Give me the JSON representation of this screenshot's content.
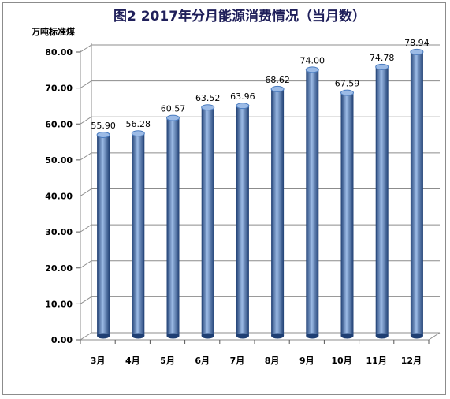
{
  "chart_data": {
    "type": "bar",
    "title": "图2 2017年分月能源消费情况（当月数）",
    "ylabel": "万吨标准煤",
    "xlabel": "",
    "categories": [
      "3月",
      "4月",
      "5月",
      "6月",
      "7月",
      "8月",
      "9月",
      "10月",
      "11月",
      "12月"
    ],
    "values": [
      55.9,
      56.28,
      60.57,
      63.52,
      63.96,
      68.62,
      74.0,
      67.59,
      74.78,
      78.94
    ],
    "data_labels": [
      "55.90",
      "56.28",
      "60.57",
      "63.52",
      "63.96",
      "68.62",
      "74.00",
      "67.59",
      "74.78",
      "78.94"
    ],
    "ylim": [
      0,
      80
    ],
    "yticks": [
      0,
      10,
      20,
      30,
      40,
      50,
      60,
      70,
      80
    ],
    "ytick_labels": [
      "0.00",
      "10.00",
      "20.00",
      "30.00",
      "40.00",
      "50.00",
      "60.00",
      "70.00",
      "80.00"
    ],
    "grid": true,
    "legend": "none",
    "bar_color": "#4a7cc0",
    "bar_dark": "#1f3f73",
    "bar_light": "#9cbbe6",
    "grid_color": "#8c8c8c"
  }
}
